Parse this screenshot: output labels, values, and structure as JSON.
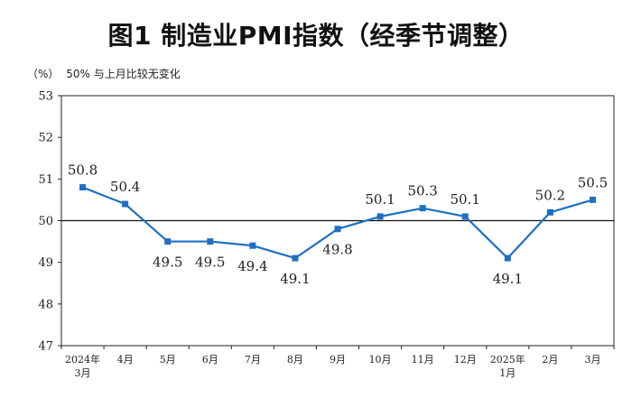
{
  "title": "图1  制造业PMI指数（经季节调整）",
  "note": {
    "unit": "（%）",
    "threshold_label": "50%  与上月比较无变化"
  },
  "chart_data": {
    "type": "line",
    "title": "图1  制造业PMI指数（经季节调整）",
    "ylabel": "（%）",
    "xlabel": "",
    "ylim": [
      47,
      53
    ],
    "yticks": [
      47,
      48,
      49,
      50,
      51,
      52,
      53
    ],
    "reference_line": 50,
    "categories": [
      [
        "2024年",
        "3月"
      ],
      [
        "4月"
      ],
      [
        "5月"
      ],
      [
        "6月"
      ],
      [
        "7月"
      ],
      [
        "8月"
      ],
      [
        "9月"
      ],
      [
        "10月"
      ],
      [
        "11月"
      ],
      [
        "12月"
      ],
      [
        "2025年",
        "1月"
      ],
      [
        "2月"
      ],
      [
        "3月"
      ]
    ],
    "series": [
      {
        "values": [
          50.8,
          50.4,
          49.5,
          49.5,
          49.4,
          49.1,
          49.8,
          50.1,
          50.3,
          50.1,
          49.1,
          50.2,
          50.5
        ],
        "color": "#1f6fc2"
      }
    ],
    "data_label_positions": [
      "above",
      "above",
      "below",
      "below",
      "below",
      "below",
      "below",
      "above",
      "above",
      "above",
      "below",
      "above",
      "above"
    ],
    "grid": false
  }
}
